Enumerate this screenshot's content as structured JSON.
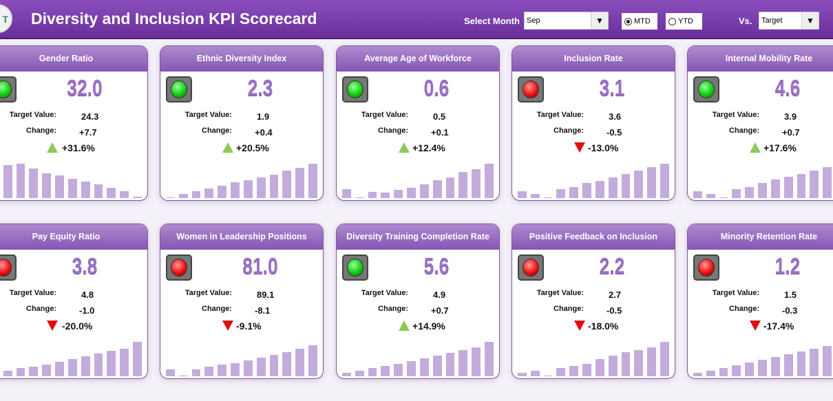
{
  "header": {
    "logo_text": "T",
    "title": "Diversity and Inclusion KPI Scorecard",
    "select_month_label": "Select Month",
    "month": "Sep",
    "mtd": "MTD",
    "ytd": "YTD",
    "selected_period": "MTD",
    "vs_label": "Vs.",
    "vs_value": "Target"
  },
  "labels": {
    "target": "Target Value:",
    "change": "Change:"
  },
  "kpis": [
    {
      "name": "Gender Ratio",
      "value": "32.0",
      "target": "24.3",
      "change": "+7.7",
      "pct": "+31.6%",
      "status": "green",
      "dir": "up",
      "trend": [
        55,
        48,
        50,
        43,
        36,
        33,
        28,
        24,
        20,
        15,
        10,
        2
      ]
    },
    {
      "name": "Ethnic Diversity Index",
      "value": "2.3",
      "target": "1.9",
      "change": "+0.4",
      "pct": "+20.5%",
      "status": "green",
      "dir": "up",
      "trend": [
        1,
        6,
        10,
        14,
        18,
        23,
        26,
        30,
        34,
        40,
        44,
        50
      ]
    },
    {
      "name": "Average Age of Workforce",
      "value": "0.6",
      "target": "0.5",
      "change": "+0.1",
      "pct": "+12.4%",
      "status": "green",
      "dir": "up",
      "trend": [
        13,
        1,
        9,
        8,
        12,
        15,
        20,
        26,
        30,
        38,
        42,
        50
      ]
    },
    {
      "name": "Inclusion Rate",
      "value": "3.1",
      "target": "3.6",
      "change": "-0.5",
      "pct": "-13.0%",
      "status": "red",
      "dir": "down",
      "trend": [
        10,
        6,
        1,
        13,
        16,
        22,
        25,
        30,
        35,
        40,
        45,
        50
      ]
    },
    {
      "name": "Internal Mobility Rate",
      "value": "4.6",
      "target": "3.9",
      "change": "+0.7",
      "pct": "+17.6%",
      "status": "green",
      "dir": "up",
      "trend": [
        10,
        6,
        1,
        13,
        16,
        22,
        27,
        31,
        35,
        40,
        45,
        50
      ]
    },
    {
      "name": "Pay Equity Ratio",
      "value": "3.8",
      "target": "4.8",
      "change": "-1.0",
      "pct": "-20.0%",
      "status": "red",
      "dir": "down",
      "trend": [
        5,
        8,
        12,
        14,
        17,
        21,
        25,
        29,
        33,
        37,
        40,
        50
      ]
    },
    {
      "name": "Women in Leadership Positions",
      "value": "81.0",
      "target": "89.1",
      "change": "-8.1",
      "pct": "-9.1%",
      "status": "red",
      "dir": "down",
      "trend": [
        10,
        1,
        10,
        14,
        17,
        19,
        23,
        27,
        31,
        35,
        40,
        45
      ]
    },
    {
      "name": "Diversity Training Completion Rate",
      "value": "5.6",
      "target": "4.9",
      "change": "+0.7",
      "pct": "+14.9%",
      "status": "green",
      "dir": "up",
      "trend": [
        5,
        8,
        12,
        15,
        18,
        22,
        26,
        30,
        34,
        38,
        42,
        50
      ]
    },
    {
      "name": "Positive Feedback on Inclusion",
      "value": "2.2",
      "target": "2.7",
      "change": "-0.5",
      "pct": "-18.0%",
      "status": "red",
      "dir": "down",
      "trend": [
        5,
        8,
        1,
        12,
        15,
        18,
        25,
        30,
        35,
        38,
        42,
        50
      ]
    },
    {
      "name": "Minority Retention Rate",
      "value": "1.2",
      "target": "1.5",
      "change": "-0.3",
      "pct": "-17.4%",
      "status": "red",
      "dir": "down",
      "trend": [
        5,
        8,
        12,
        16,
        20,
        24,
        28,
        32,
        36,
        40,
        44,
        50
      ]
    }
  ]
}
